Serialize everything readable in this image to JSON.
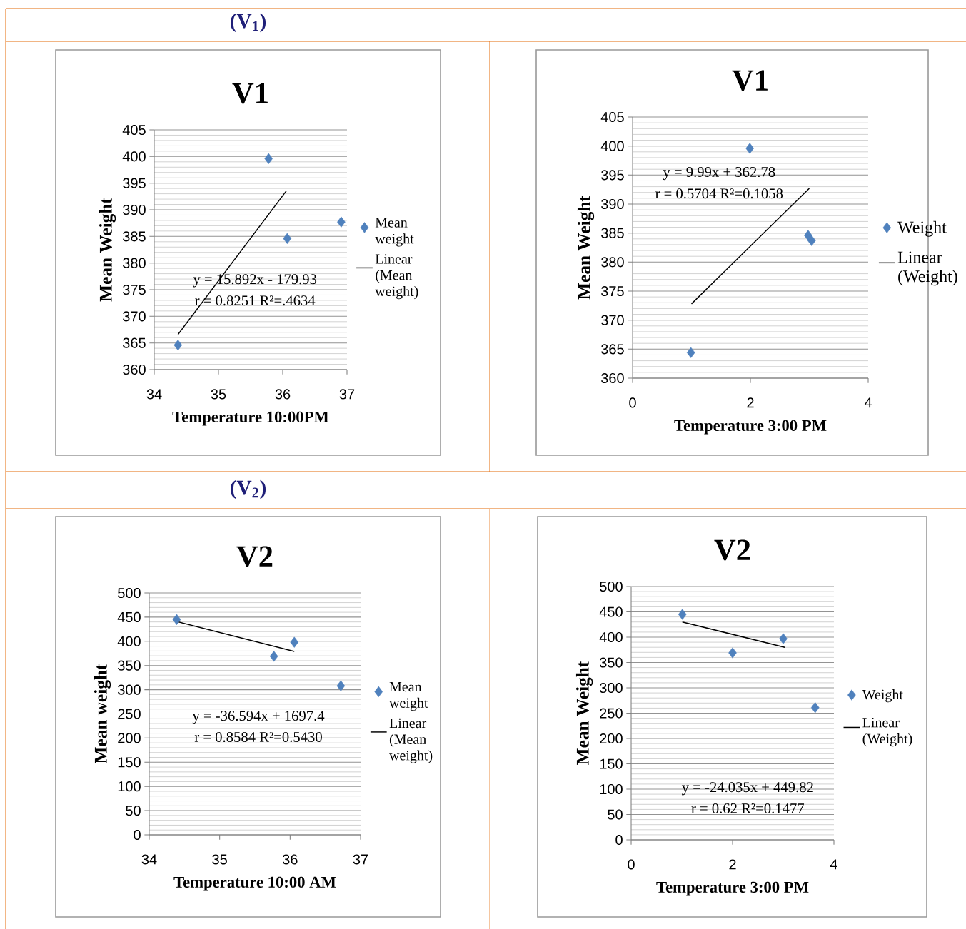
{
  "chart_data": [
    {
      "type": "scatter",
      "subtitle": "(V$_{1}$)",
      "title": "V1",
      "xlabel": "Temperature 10:00PM",
      "ylabel": "Mean Weight",
      "xlim": [
        34,
        37
      ],
      "ylim": [
        360,
        405
      ],
      "xticks": [
        34,
        35,
        36,
        37
      ],
      "yticks": [
        360,
        365,
        370,
        375,
        380,
        385,
        390,
        395,
        400,
        405
      ],
      "grid": "y",
      "legend": "right",
      "series": [
        {
          "name": "Mean weight",
          "color": "#4f81bd",
          "marker": "diamond",
          "x": [
            34.37,
            35.78,
            36.07,
            36.91
          ],
          "values": [
            364.6,
            399.6,
            384.6,
            387.7
          ]
        },
        {
          "name": "Linear (Mean weight)",
          "type": "line",
          "marker": "none",
          "color": "#000000",
          "x": [
            34.37,
            36.06
          ],
          "values": [
            366.6,
            393.6
          ]
        }
      ],
      "annotations": [
        "y = 15.892x - 179.93",
        "r = 0.8251 R²=.4634"
      ]
    },
    {
      "type": "scatter",
      "title": "V1",
      "xlabel": "Temperature 3:00 PM",
      "ylabel": "Mean Weight",
      "xlim": [
        0,
        4
      ],
      "ylim": [
        360,
        405
      ],
      "xticks": [
        0,
        2,
        4
      ],
      "yticks": [
        360,
        365,
        370,
        375,
        380,
        385,
        390,
        395,
        400,
        405
      ],
      "grid": "y",
      "legend": "right",
      "series": [
        {
          "name": "Weight",
          "color": "#4f81bd",
          "marker": "diamond",
          "x": [
            0.99,
            1.99,
            2.98,
            3.04
          ],
          "values": [
            364.4,
            399.6,
            384.6,
            383.7
          ]
        },
        {
          "name": "Linear (Weight)",
          "type": "line",
          "marker": "none",
          "color": "#000000",
          "x": [
            1.0,
            3.0
          ],
          "values": [
            372.8,
            392.7
          ]
        }
      ],
      "annotations": [
        "y = 9.99x + 362.78",
        "r = 0.5704 R²=0.1058"
      ]
    },
    {
      "type": "scatter",
      "subtitle": "(V$_{2}$)",
      "title": "V2",
      "xlabel": "Temperature 10:00 AM",
      "ylabel": "Mean weight",
      "xlim": [
        34,
        37
      ],
      "ylim": [
        0,
        500
      ],
      "xticks": [
        34,
        35,
        36,
        37
      ],
      "yticks": [
        0,
        50,
        100,
        150,
        200,
        250,
        300,
        350,
        400,
        450,
        500
      ],
      "grid": "y",
      "legend": "right",
      "series": [
        {
          "name": "Mean weight",
          "color": "#4f81bd",
          "marker": "diamond",
          "x": [
            34.39,
            35.77,
            36.06,
            36.72
          ],
          "values": [
            445,
            369,
            398,
            308
          ]
        },
        {
          "name": "Linear (Mean weight)",
          "type": "line",
          "marker": "none",
          "color": "#000000",
          "x": [
            34.36,
            36.06
          ],
          "values": [
            442,
            379
          ]
        }
      ],
      "annotations": [
        "y = -36.594x + 1697.4",
        "r = 0.8584 R²=0.5430"
      ]
    },
    {
      "type": "scatter",
      "title": "V2",
      "xlabel": "Temperature 3:00 PM",
      "ylabel": "Mean Weight",
      "xlim": [
        0,
        4
      ],
      "ylim": [
        0,
        500
      ],
      "xticks": [
        0,
        2,
        4
      ],
      "yticks": [
        0,
        50,
        100,
        150,
        200,
        250,
        300,
        350,
        400,
        450,
        500
      ],
      "grid": "y",
      "legend": "right",
      "series": [
        {
          "name": "Weight",
          "color": "#4f81bd",
          "marker": "diamond",
          "x": [
            1.01,
            2.0,
            3.0,
            3.63
          ],
          "values": [
            445,
            369,
            397,
            261
          ]
        },
        {
          "name": "Linear (Weight)",
          "type": "line",
          "marker": "none",
          "color": "#000000",
          "x": [
            1.01,
            3.03
          ],
          "values": [
            430,
            380
          ]
        }
      ],
      "annotations": [
        "y = -24.035x + 449.82",
        "r = 0.62 R²=0.1477"
      ]
    }
  ]
}
